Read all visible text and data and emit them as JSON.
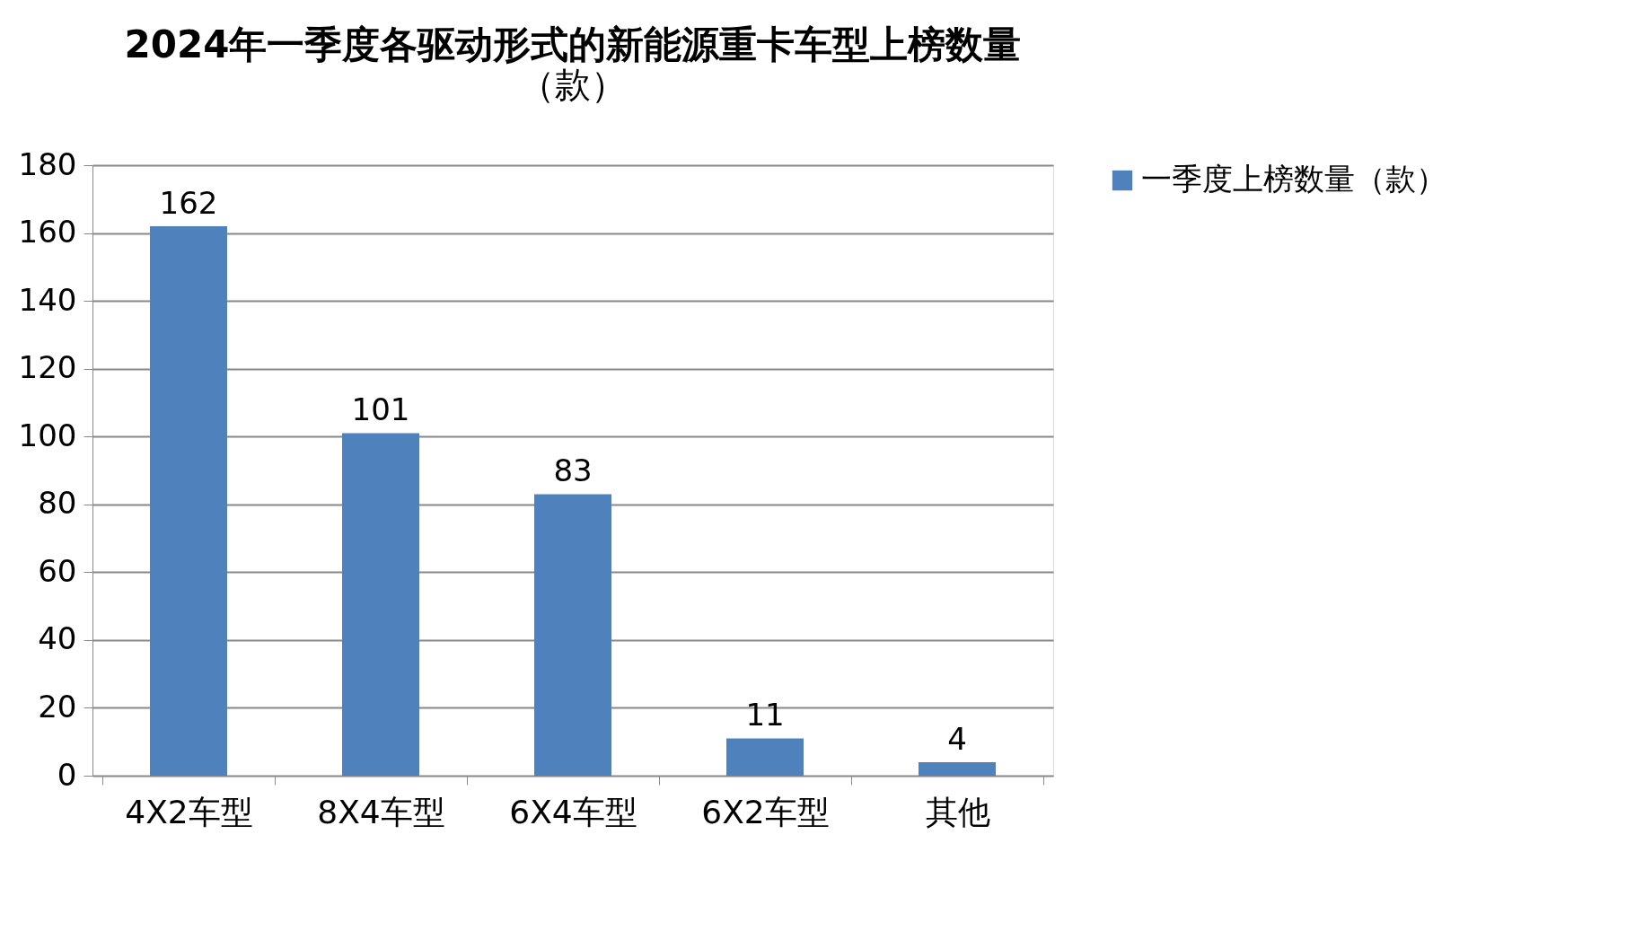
{
  "chart_data": {
    "type": "bar",
    "title": "2024年一季度各驱动形式的新能源重卡车型上榜数量",
    "subtitle": "（款）",
    "categories": [
      "4X2车型",
      "8X4车型",
      "6X4车型",
      "6X2车型",
      "其他"
    ],
    "series": [
      {
        "name": "一季度上榜数量（款）",
        "color": "#4f81bd",
        "values": [
          162,
          101,
          83,
          11,
          4
        ]
      }
    ],
    "ylim": [
      0,
      180
    ],
    "yticks": [
      0,
      20,
      40,
      60,
      80,
      100,
      120,
      140,
      160,
      180
    ],
    "grid": "y",
    "legend": "right",
    "data_labels": true
  }
}
